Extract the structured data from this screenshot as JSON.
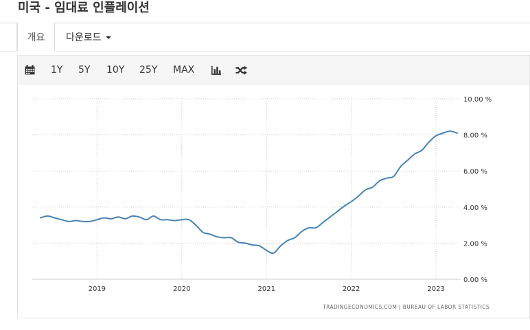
{
  "page": {
    "title": "미국 - 임대료 인플레이션"
  },
  "tabs": {
    "overview_label": "개요",
    "download_label": "다운로드"
  },
  "toolbar": {
    "icons": [
      "calendar-icon",
      "bar-chart-icon",
      "shuffle-icon"
    ],
    "ranges": [
      "1Y",
      "5Y",
      "10Y",
      "25Y",
      "MAX"
    ]
  },
  "chart_data": {
    "type": "line",
    "x_ticks": [
      "2019",
      "2020",
      "2021",
      "2022",
      "2023"
    ],
    "y_ticks": [
      "0.00 %",
      "2.00 %",
      "4.00 %",
      "6.00 %",
      "8.00 %",
      "10.00 %"
    ],
    "ylim": [
      0,
      10
    ],
    "xlim": [
      "2018-05",
      "2023-04"
    ],
    "grid": true,
    "line_color": "#4682b4",
    "source": "TRADINGECONOMICS.COM  |  BUREAU OF LABOR STATISTICS",
    "series": [
      {
        "x": [
          "2018-05",
          "2018-06",
          "2018-07",
          "2018-08",
          "2018-09",
          "2018-10",
          "2018-11",
          "2018-12",
          "2019-01",
          "2019-02",
          "2019-03",
          "2019-04",
          "2019-05",
          "2019-06",
          "2019-07",
          "2019-08",
          "2019-09",
          "2019-10",
          "2019-11",
          "2019-12",
          "2020-01",
          "2020-02",
          "2020-03",
          "2020-04",
          "2020-05",
          "2020-06",
          "2020-07",
          "2020-08",
          "2020-09",
          "2020-10",
          "2020-11",
          "2020-12",
          "2021-01",
          "2021-02",
          "2021-03",
          "2021-04",
          "2021-05",
          "2021-06",
          "2021-07",
          "2021-08",
          "2021-09",
          "2021-10",
          "2021-11",
          "2021-12",
          "2022-01",
          "2022-02",
          "2022-03",
          "2022-04",
          "2022-05",
          "2022-06",
          "2022-07",
          "2022-08",
          "2022-09",
          "2022-10",
          "2022-11",
          "2022-12",
          "2023-01",
          "2023-02",
          "2023-03",
          "2023-04"
        ],
        "values": [
          3.4,
          3.5,
          3.4,
          3.3,
          3.2,
          3.25,
          3.2,
          3.2,
          3.3,
          3.4,
          3.35,
          3.45,
          3.35,
          3.5,
          3.45,
          3.3,
          3.5,
          3.3,
          3.3,
          3.25,
          3.3,
          3.3,
          3.0,
          2.6,
          2.5,
          2.35,
          2.3,
          2.3,
          2.05,
          2.0,
          1.9,
          1.85,
          1.6,
          1.45,
          1.85,
          2.15,
          2.3,
          2.65,
          2.85,
          2.85,
          3.15,
          3.45,
          3.75,
          4.05,
          4.3,
          4.6,
          4.95,
          5.1,
          5.45,
          5.6,
          5.7,
          6.25,
          6.6,
          6.95,
          7.15,
          7.6,
          7.95,
          8.1,
          8.2,
          8.1
        ]
      }
    ]
  }
}
